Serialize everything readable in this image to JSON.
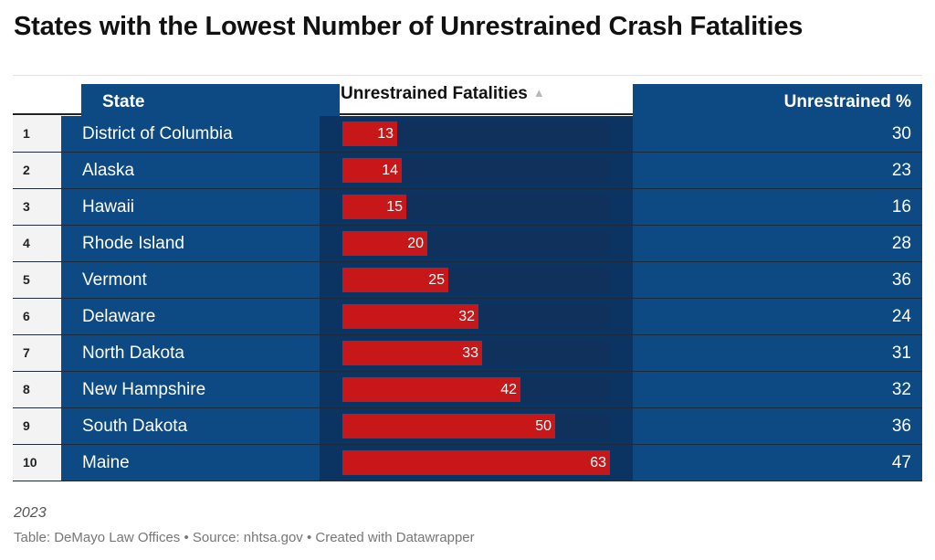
{
  "title": "States with the Lowest Number of Unrestrained Crash Fatalities",
  "headers": {
    "state": "State",
    "fatalities": "Unrestrained Fatalities",
    "sort_icon": "▲",
    "percent": "Unrestrained %"
  },
  "colors": {
    "state_cell": "#0d4a83",
    "bar_column": "#0c3462",
    "bar": "#c81718",
    "rank_cell": "#f3f3f3"
  },
  "chart_data": {
    "type": "table",
    "columns": [
      "",
      "State",
      "Unrestrained Fatalities",
      "Unrestrained %"
    ],
    "bar_max": 63,
    "rows": [
      {
        "rank": "1",
        "state": "District of Columbia",
        "fatalities": 13,
        "percent": 30
      },
      {
        "rank": "2",
        "state": "Alaska",
        "fatalities": 14,
        "percent": 23
      },
      {
        "rank": "3",
        "state": "Hawaii",
        "fatalities": 15,
        "percent": 16
      },
      {
        "rank": "4",
        "state": "Rhode Island",
        "fatalities": 20,
        "percent": 28
      },
      {
        "rank": "5",
        "state": "Vermont",
        "fatalities": 25,
        "percent": 36
      },
      {
        "rank": "6",
        "state": "Delaware",
        "fatalities": 32,
        "percent": 24
      },
      {
        "rank": "7",
        "state": "North Dakota",
        "fatalities": 33,
        "percent": 31
      },
      {
        "rank": "8",
        "state": "New Hampshire",
        "fatalities": 42,
        "percent": 32
      },
      {
        "rank": "9",
        "state": "South Dakota",
        "fatalities": 50,
        "percent": 36
      },
      {
        "rank": "10",
        "state": "Maine",
        "fatalities": 63,
        "percent": 47
      }
    ]
  },
  "notes": "2023",
  "footer": "Table: DeMayo Law Offices • Source: nhtsa.gov • Created with Datawrapper"
}
